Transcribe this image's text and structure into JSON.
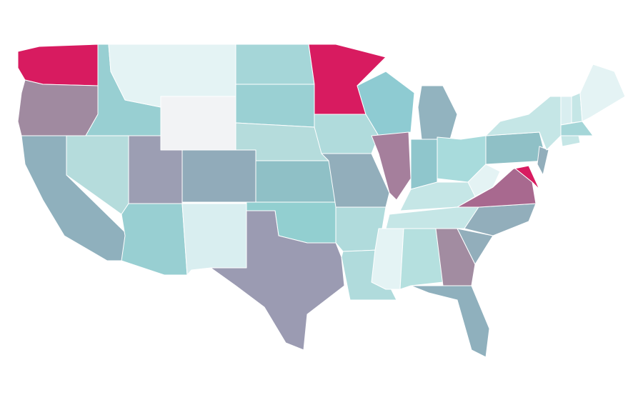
{
  "map": {
    "regions": [
      {
        "color": "#d81b60"
      },
      {
        "color": "#a08aa0"
      },
      {
        "color": "#8fb0bd"
      },
      {
        "color": "#98cfd2"
      },
      {
        "color": "#b5dcdc"
      },
      {
        "color": "#e4f3f4"
      },
      {
        "color": "#f2f3f5"
      },
      {
        "color": "#9c9eb3"
      },
      {
        "color": "#91abba"
      },
      {
        "color": "#98cfd2"
      },
      {
        "color": "#d9eef0"
      },
      {
        "color": "#a5d6d8"
      },
      {
        "color": "#9ad0d3"
      },
      {
        "color": "#b5dcdc"
      },
      {
        "color": "#8fc0c6"
      },
      {
        "color": "#92cfd0"
      },
      {
        "color": "#9b9bb2"
      },
      {
        "color": "#d81b60"
      },
      {
        "color": "#b0dbdc"
      },
      {
        "color": "#92aebb"
      },
      {
        "color": "#b0dbdc"
      },
      {
        "color": "#b0dbdc"
      },
      {
        "color": "#8ecbd2"
      },
      {
        "color": "#a57f9c"
      },
      {
        "color": "#92b3bf"
      },
      {
        "color": "#8fc6cc"
      },
      {
        "color": "#a8dbdc"
      },
      {
        "color": "#c5e6e6"
      },
      {
        "color": "#c5e6e6"
      },
      {
        "color": "#e4f3f4"
      },
      {
        "color": "#b5e0df"
      },
      {
        "color": "#a28ca1"
      },
      {
        "color": "#8fb0bd"
      },
      {
        "color": "#92aebb"
      },
      {
        "color": "#92aebb"
      },
      {
        "color": "#a8698f"
      },
      {
        "color": "#e4f3f4"
      },
      {
        "color": "#8fc0c6"
      },
      {
        "color": "#d81b60"
      },
      {
        "color": "#92aebb"
      },
      {
        "color": "#c5e6e6"
      },
      {
        "color": "#d9eef0"
      },
      {
        "color": "#c5e6e6"
      },
      {
        "color": "#e4f3f4"
      },
      {
        "color": "#a5d6d8"
      },
      {
        "color": "#c5e6e6"
      }
    ]
  }
}
